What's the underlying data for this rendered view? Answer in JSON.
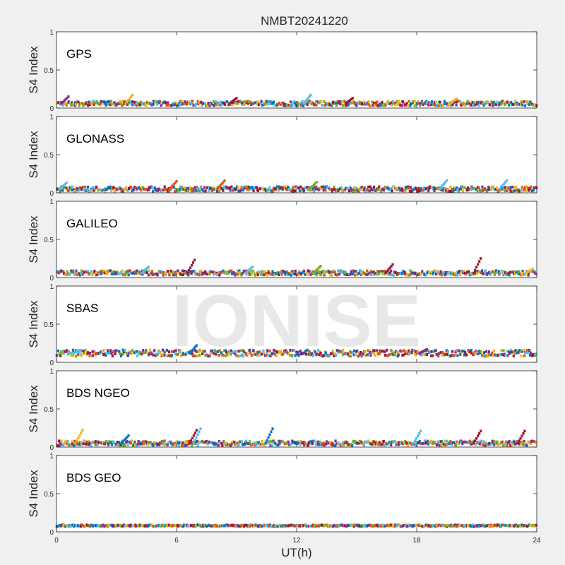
{
  "chart_data": {
    "type": "scatter",
    "title": "NMBT20241220",
    "xlabel": "UT(h)",
    "ylabel": "S4 Index",
    "xlim": [
      0,
      24
    ],
    "ylim": [
      0,
      1
    ],
    "xticks": [
      "0",
      "6",
      "12",
      "18",
      "24"
    ],
    "yticks": [
      "0",
      "0.5",
      "1"
    ],
    "watermark": "IONISE",
    "grid": false,
    "series_colors": [
      "#0072bd",
      "#d95319",
      "#edb120",
      "#7e2f8e",
      "#77ac30",
      "#4dbeee",
      "#a2142f"
    ],
    "panels": [
      {
        "name": "GPS",
        "baseline_s4": 0.06,
        "spread_s4": 0.03,
        "max_s4": 0.17,
        "highlights": [
          {
            "x": 9.0,
            "y": 0.13,
            "color": "#a2142f"
          },
          {
            "x": 12.7,
            "y": 0.17,
            "color": "#4dbeee"
          },
          {
            "x": 14.8,
            "y": 0.13,
            "color": "#a2142f"
          },
          {
            "x": 20.0,
            "y": 0.12,
            "color": "#edb120"
          },
          {
            "x": 3.8,
            "y": 0.17,
            "color": "#edb120"
          },
          {
            "x": 0.6,
            "y": 0.15,
            "color": "#7e2f8e"
          }
        ]
      },
      {
        "name": "GLONASS",
        "baseline_s4": 0.05,
        "spread_s4": 0.03,
        "max_s4": 0.16,
        "highlights": [
          {
            "x": 0.5,
            "y": 0.13,
            "color": "#4dbeee"
          },
          {
            "x": 6.0,
            "y": 0.15,
            "color": "#d95319"
          },
          {
            "x": 8.4,
            "y": 0.16,
            "color": "#d95319"
          },
          {
            "x": 13.0,
            "y": 0.14,
            "color": "#77ac30"
          },
          {
            "x": 19.5,
            "y": 0.16,
            "color": "#4dbeee"
          },
          {
            "x": 22.5,
            "y": 0.16,
            "color": "#4dbeee"
          }
        ]
      },
      {
        "name": "GALILEO",
        "baseline_s4": 0.06,
        "spread_s4": 0.03,
        "max_s4": 0.25,
        "highlights": [
          {
            "x": 6.9,
            "y": 0.23,
            "color": "#a2142f"
          },
          {
            "x": 9.8,
            "y": 0.14,
            "color": "#4dbeee"
          },
          {
            "x": 13.2,
            "y": 0.15,
            "color": "#77ac30"
          },
          {
            "x": 16.8,
            "y": 0.17,
            "color": "#a2142f"
          },
          {
            "x": 21.2,
            "y": 0.25,
            "color": "#a2142f"
          },
          {
            "x": 23.8,
            "y": 0.11,
            "color": "#edb120"
          },
          {
            "x": 4.6,
            "y": 0.14,
            "color": "#4dbeee"
          }
        ]
      },
      {
        "name": "SBAS",
        "baseline_s4": 0.12,
        "spread_s4": 0.04,
        "max_s4": 0.22,
        "highlights": [
          {
            "x": 7.0,
            "y": 0.22,
            "color": "#0072bd"
          },
          {
            "x": 1.2,
            "y": 0.16,
            "color": "#4dbeee"
          },
          {
            "x": 18.5,
            "y": 0.17,
            "color": "#7e2f8e"
          }
        ]
      },
      {
        "name": "BDS NGEO",
        "baseline_s4": 0.05,
        "spread_s4": 0.03,
        "max_s4": 0.25,
        "highlights": [
          {
            "x": 1.3,
            "y": 0.22,
            "color": "#edb120"
          },
          {
            "x": 3.6,
            "y": 0.15,
            "color": "#0072bd"
          },
          {
            "x": 7.0,
            "y": 0.22,
            "color": "#a2142f"
          },
          {
            "x": 7.2,
            "y": 0.24,
            "color": "#4dbeee"
          },
          {
            "x": 10.8,
            "y": 0.24,
            "color": "#0072bd"
          },
          {
            "x": 18.2,
            "y": 0.21,
            "color": "#4dbeee"
          },
          {
            "x": 21.2,
            "y": 0.21,
            "color": "#a2142f"
          },
          {
            "x": 23.4,
            "y": 0.21,
            "color": "#a2142f"
          }
        ]
      },
      {
        "name": "BDS GEO",
        "baseline_s4": 0.08,
        "spread_s4": 0.01,
        "max_s4": 0.09,
        "highlights": []
      }
    ]
  }
}
